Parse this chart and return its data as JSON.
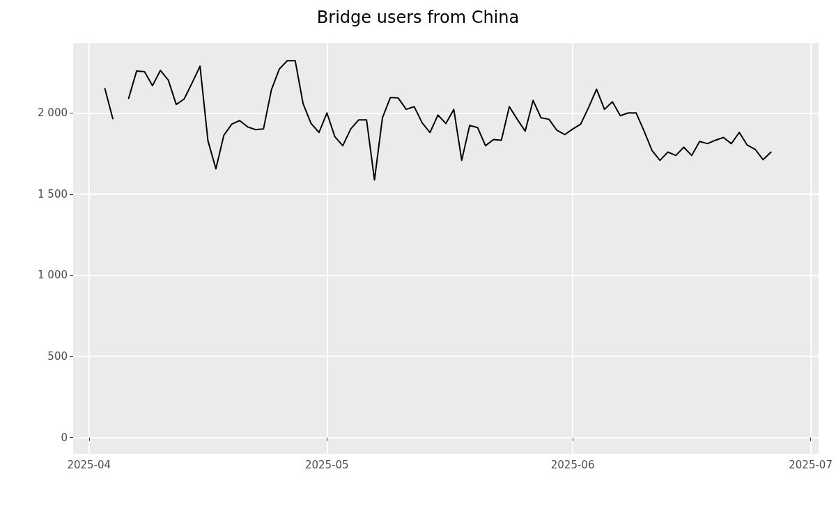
{
  "chart_data": {
    "type": "line",
    "title": "Bridge users from China",
    "x": [
      "2025-04-03",
      "2025-04-04",
      "2025-04-05",
      "2025-04-06",
      "2025-04-07",
      "2025-04-08",
      "2025-04-09",
      "2025-04-10",
      "2025-04-11",
      "2025-04-12",
      "2025-04-13",
      "2025-04-14",
      "2025-04-15",
      "2025-04-16",
      "2025-04-17",
      "2025-04-18",
      "2025-04-19",
      "2025-04-20",
      "2025-04-21",
      "2025-04-22",
      "2025-04-23",
      "2025-04-24",
      "2025-04-25",
      "2025-04-26",
      "2025-04-27",
      "2025-04-28",
      "2025-04-29",
      "2025-04-30",
      "2025-05-01",
      "2025-05-02",
      "2025-05-03",
      "2025-05-04",
      "2025-05-05",
      "2025-05-06",
      "2025-05-07",
      "2025-05-08",
      "2025-05-09",
      "2025-05-10",
      "2025-05-11",
      "2025-05-12",
      "2025-05-13",
      "2025-05-14",
      "2025-05-15",
      "2025-05-16",
      "2025-05-17",
      "2025-05-18",
      "2025-05-19",
      "2025-05-20",
      "2025-05-21",
      "2025-05-22",
      "2025-05-23",
      "2025-05-24",
      "2025-05-25",
      "2025-05-26",
      "2025-05-27",
      "2025-05-28",
      "2025-05-29",
      "2025-05-30",
      "2025-05-31",
      "2025-06-01",
      "2025-06-02",
      "2025-06-03",
      "2025-06-04",
      "2025-06-05",
      "2025-06-06",
      "2025-06-07",
      "2025-06-08",
      "2025-06-09",
      "2025-06-10",
      "2025-06-11",
      "2025-06-12",
      "2025-06-13",
      "2025-06-14",
      "2025-06-15",
      "2025-06-16",
      "2025-06-17",
      "2025-06-18",
      "2025-06-19",
      "2025-06-20",
      "2025-06-21",
      "2025-06-22",
      "2025-06-23",
      "2025-06-24",
      "2025-06-25",
      "2025-06-26"
    ],
    "series": [
      {
        "color": "#000000",
        "values": [
          2150,
          1965,
          null,
          2090,
          2258,
          2254,
          2168,
          2262,
          2202,
          2052,
          2086,
          2185,
          2288,
          1828,
          1656,
          1862,
          1931,
          1953,
          1914,
          1897,
          1901,
          2142,
          2271,
          2322,
          2322,
          2056,
          1935,
          1880,
          2000,
          1854,
          1798,
          1901,
          1957,
          1957,
          1587,
          1970,
          2095,
          2092,
          2022,
          2039,
          1940,
          1880,
          1987,
          1935,
          2022,
          1708,
          1923,
          1910,
          1798,
          1836,
          1832,
          2039,
          1961,
          1888,
          2077,
          1970,
          1961,
          1893,
          1867,
          1901,
          1931,
          2034,
          2146,
          2022,
          2069,
          1983,
          2000,
          2000,
          1888,
          1768,
          1708,
          1759,
          1738,
          1789,
          1738,
          1824,
          1811,
          1832,
          1849,
          1811,
          1880,
          1802,
          1776,
          1712,
          1759
        ]
      }
    ],
    "xlim": [
      "2025-03-30",
      "2025-07-02"
    ],
    "xticks": [
      "2025-04",
      "2025-05",
      "2025-06",
      "2025-07"
    ],
    "ylim": [
      -100,
      2430
    ],
    "yticks": [
      0,
      {
        "value": 500,
        "label": "500"
      },
      {
        "value": 1000,
        "label": "1 000"
      },
      {
        "value": 1500,
        "label": "1 500"
      },
      {
        "value": 2000,
        "label": "2 000"
      }
    ],
    "grid": true,
    "marker": "none",
    "line_style": "solid"
  }
}
